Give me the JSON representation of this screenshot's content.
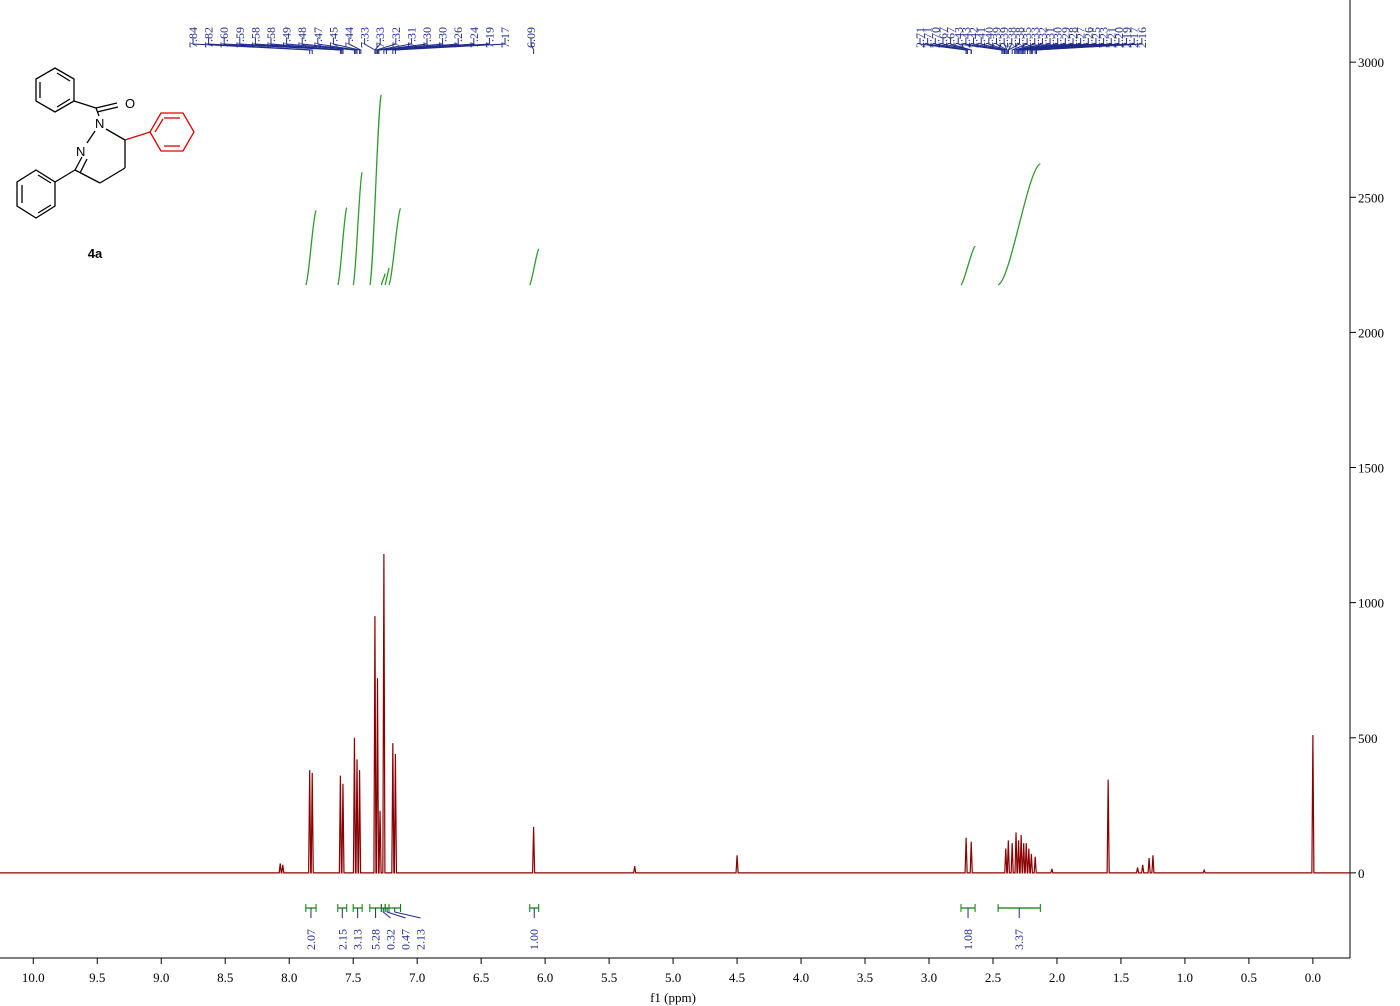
{
  "chart_data": {
    "type": "line",
    "x_label": "f1 (ppm)",
    "xlim": [
      10.26,
      -0.29
    ],
    "ylim": [
      -315,
      3230
    ],
    "xticks": [
      {
        "value": 10,
        "label": "10.0"
      },
      9.5,
      {
        "value": 9,
        "label": "9.0"
      },
      8.5,
      {
        "value": 8,
        "label": "8.0"
      },
      7.5,
      {
        "value": 7,
        "label": "7.0"
      },
      6.5,
      {
        "value": 6,
        "label": "6.0"
      },
      5.5,
      {
        "value": 5,
        "label": "5.0"
      },
      4.5,
      {
        "value": 4,
        "label": "4.0"
      },
      3.5,
      {
        "value": 3,
        "label": "3.0"
      },
      2.5,
      {
        "value": 2,
        "label": "2.0"
      },
      1.5,
      {
        "value": 1,
        "label": "1.0"
      },
      0.5,
      {
        "value": 0,
        "label": "0.0"
      }
    ],
    "yticks": [
      0,
      500,
      1000,
      1500,
      2000,
      2500,
      3000
    ],
    "series": [
      {
        "color": "#8b0000",
        "x": [
          10.26,
          8.078,
          8.07,
          8.062,
          8.058,
          8.05,
          8.042,
          7.848,
          7.84,
          7.832,
          7.828,
          7.82,
          7.812,
          7.608,
          7.6,
          7.592,
          7.588,
          7.58,
          7.572,
          7.498,
          7.49,
          7.482,
          7.478,
          7.47,
          7.462,
          7.458,
          7.45,
          7.442,
          7.338,
          7.33,
          7.322,
          7.318,
          7.31,
          7.302,
          7.298,
          7.29,
          7.282,
          7.268,
          7.26,
          7.252,
          7.198,
          7.19,
          7.182,
          7.178,
          7.17,
          7.162,
          6.098,
          6.09,
          6.082,
          5.308,
          5.3,
          5.292,
          4.508,
          4.5,
          4.492,
          2.718,
          2.71,
          2.702,
          2.678,
          2.67,
          2.662,
          2.408,
          2.4,
          2.392,
          2.388,
          2.38,
          2.372,
          2.358,
          2.35,
          2.342,
          2.328,
          2.32,
          2.312,
          2.308,
          2.3,
          2.292,
          2.288,
          2.28,
          2.272,
          2.268,
          2.26,
          2.252,
          2.248,
          2.24,
          2.232,
          2.228,
          2.22,
          2.212,
          2.208,
          2.2,
          2.192,
          2.178,
          2.17,
          2.162,
          2.048,
          2.04,
          2.032,
          1.608,
          1.6,
          1.592,
          1.378,
          1.37,
          1.362,
          1.338,
          1.33,
          1.322,
          1.288,
          1.28,
          1.272,
          1.258,
          1.25,
          1.242,
          0.858,
          0.85,
          0.842,
          0.008,
          0,
          -0.008,
          -0.29
        ],
        "values": [
          0,
          0,
          35,
          0,
          0,
          30,
          0,
          0,
          380,
          0,
          0,
          370,
          0,
          0,
          360,
          0,
          0,
          330,
          0,
          0,
          500,
          0,
          0,
          420,
          0,
          0,
          380,
          0,
          0,
          950,
          0,
          0,
          720,
          0,
          0,
          230,
          0,
          0,
          1180,
          0,
          0,
          480,
          0,
          0,
          440,
          0,
          0,
          170,
          0,
          0,
          25,
          0,
          0,
          65,
          0,
          0,
          130,
          0,
          0,
          115,
          0,
          0,
          90,
          0,
          0,
          120,
          0,
          0,
          110,
          0,
          0,
          150,
          0,
          0,
          120,
          0,
          0,
          140,
          0,
          0,
          110,
          0,
          0,
          110,
          0,
          0,
          90,
          0,
          0,
          70,
          0,
          0,
          60,
          0,
          0,
          15,
          0,
          0,
          345,
          0,
          0,
          20,
          0,
          0,
          30,
          0,
          0,
          55,
          0,
          0,
          65,
          0,
          0,
          10,
          0,
          0,
          510,
          0,
          0
        ]
      }
    ],
    "peak_label_groups": [
      [
        "7.84",
        "7.82",
        "7.60",
        "7.59",
        "7.58",
        "7.58",
        "7.49",
        "7.48",
        "7.47",
        "7.45",
        "7.44",
        "7.33",
        "7.33",
        "7.32",
        "7.31",
        "7.30",
        "7.30",
        "7.26",
        "7.24",
        "7.19",
        "7.17"
      ],
      [
        "6.09"
      ],
      [
        "2.71",
        "2.71",
        "2.70",
        "2.67",
        "2.67",
        "2.43",
        "2.43",
        "2.42",
        "2.41",
        "2.40",
        "2.39",
        "2.39",
        "2.38",
        "2.38",
        "2.35",
        "2.33",
        "2.32",
        "2.31",
        "2.30",
        "2.29",
        "2.28",
        "2.27",
        "2.26",
        "2.25",
        "2.23",
        "2.21",
        "2.20",
        "2.19",
        "2.17",
        "2.16"
      ]
    ],
    "integrals": [
      {
        "range": [
          7.87,
          7.79
        ],
        "value": 2.07
      },
      {
        "range": [
          7.62,
          7.55
        ],
        "value": 2.15
      },
      {
        "range": [
          7.5,
          7.43
        ],
        "value": 3.13
      },
      {
        "range": [
          7.37,
          7.28
        ],
        "value": 5.28
      },
      {
        "range": [
          7.28,
          7.25
        ],
        "value": 0.32
      },
      {
        "range": [
          7.25,
          7.22
        ],
        "value": 0.47
      },
      {
        "range": [
          7.22,
          7.13
        ],
        "value": 2.13
      },
      {
        "range": [
          6.12,
          6.05
        ],
        "value": 1,
        "label": "1.00"
      },
      {
        "range": [
          2.75,
          2.64
        ],
        "value": 1.08
      },
      {
        "range": [
          2.46,
          2.13
        ],
        "value": 3.37
      }
    ],
    "structure": {
      "label": "4a",
      "atoms": [
        "O",
        "N",
        "N"
      ]
    }
  }
}
